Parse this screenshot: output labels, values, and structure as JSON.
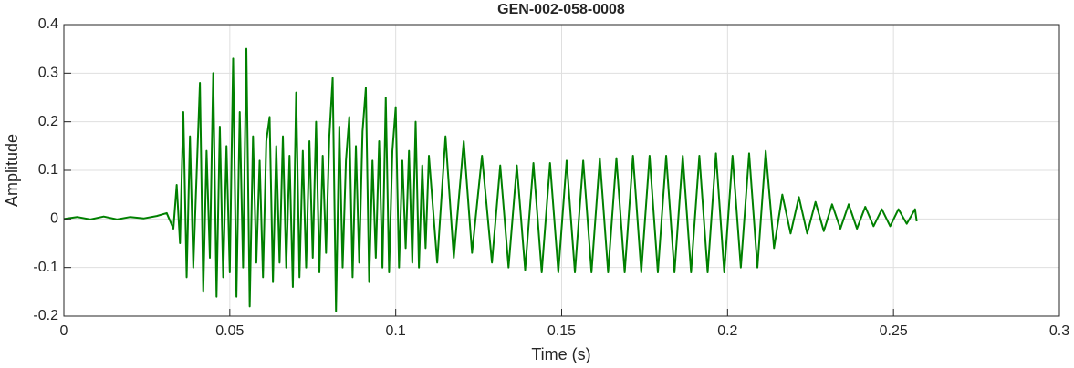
{
  "chart_data": {
    "type": "line",
    "title": "GEN-002-058-0008",
    "xlabel": "Time (s)",
    "ylabel": "Amplitude",
    "color": "#008000",
    "grid": true,
    "xlim": [
      0,
      0.3
    ],
    "ylim": [
      -0.2,
      0.4
    ],
    "xticks": [
      0,
      0.05,
      0.1,
      0.15,
      0.2,
      0.25,
      0.3
    ],
    "yticks": [
      -0.2,
      -0.1,
      0,
      0.1,
      0.2,
      0.3,
      0.4
    ],
    "x": [
      0,
      0.004,
      0.008,
      0.012,
      0.016,
      0.02,
      0.024,
      0.028,
      0.031,
      0.033,
      0.034,
      0.035,
      0.036,
      0.037,
      0.038,
      0.039,
      0.04,
      0.041,
      0.042,
      0.043,
      0.044,
      0.045,
      0.046,
      0.047,
      0.048,
      0.049,
      0.05,
      0.051,
      0.052,
      0.053,
      0.054,
      0.055,
      0.056,
      0.057,
      0.058,
      0.059,
      0.06,
      0.061,
      0.062,
      0.063,
      0.064,
      0.065,
      0.066,
      0.067,
      0.068,
      0.069,
      0.07,
      0.071,
      0.072,
      0.073,
      0.074,
      0.075,
      0.076,
      0.077,
      0.078,
      0.079,
      0.08,
      0.081,
      0.082,
      0.083,
      0.084,
      0.085,
      0.086,
      0.087,
      0.088,
      0.089,
      0.09,
      0.091,
      0.092,
      0.093,
      0.094,
      0.095,
      0.096,
      0.097,
      0.098,
      0.099,
      0.1,
      0.101,
      0.102,
      0.103,
      0.104,
      0.105,
      0.106,
      0.107,
      0.108,
      0.109,
      0.11,
      0.1125,
      0.115,
      0.1175,
      0.1205,
      0.123,
      0.126,
      0.129,
      0.1315,
      0.134,
      0.1365,
      0.139,
      0.1415,
      0.144,
      0.1465,
      0.149,
      0.1515,
      0.154,
      0.1565,
      0.159,
      0.1615,
      0.164,
      0.1665,
      0.169,
      0.1715,
      0.174,
      0.1765,
      0.179,
      0.1815,
      0.184,
      0.1865,
      0.189,
      0.1915,
      0.194,
      0.1965,
      0.199,
      0.2015,
      0.204,
      0.2065,
      0.209,
      0.2115,
      0.214,
      0.2165,
      0.219,
      0.2215,
      0.224,
      0.2265,
      0.229,
      0.2315,
      0.234,
      0.2365,
      0.239,
      0.2415,
      0.244,
      0.2465,
      0.249,
      0.2515,
      0.254,
      0.2565,
      0.257
    ],
    "values": [
      0,
      0.004,
      -0.001,
      0.005,
      -0.001,
      0.004,
      0.001,
      0.006,
      0.012,
      -0.02,
      0.07,
      -0.05,
      0.22,
      -0.12,
      0.17,
      -0.1,
      0.09,
      0.28,
      -0.15,
      0.14,
      -0.08,
      0.3,
      -0.16,
      0.19,
      -0.12,
      0.15,
      -0.11,
      0.33,
      -0.16,
      0.22,
      -0.1,
      0.35,
      -0.18,
      0.17,
      -0.09,
      0.12,
      -0.12,
      0.16,
      0.21,
      -0.13,
      0.15,
      -0.09,
      0.17,
      -0.1,
      0.13,
      -0.14,
      0.26,
      -0.12,
      0.14,
      -0.1,
      0.16,
      -0.08,
      0.2,
      -0.11,
      0.13,
      -0.07,
      0.17,
      0.29,
      -0.19,
      0.19,
      -0.1,
      0.12,
      0.21,
      -0.12,
      0.15,
      -0.09,
      0.18,
      0.27,
      -0.13,
      0.12,
      -0.08,
      0.16,
      -0.1,
      0.25,
      -0.11,
      0.14,
      0.23,
      -0.1,
      0.12,
      -0.06,
      0.14,
      -0.09,
      0.2,
      -0.1,
      0.11,
      -0.06,
      0.13,
      -0.09,
      0.17,
      -0.08,
      0.16,
      -0.07,
      0.13,
      -0.09,
      0.11,
      -0.1,
      0.11,
      -0.105,
      0.115,
      -0.11,
      0.115,
      -0.11,
      0.12,
      -0.11,
      0.12,
      -0.11,
      0.125,
      -0.11,
      0.125,
      -0.11,
      0.13,
      -0.11,
      0.13,
      -0.11,
      0.13,
      -0.11,
      0.13,
      -0.11,
      0.13,
      -0.11,
      0.135,
      -0.11,
      0.13,
      -0.1,
      0.135,
      -0.1,
      0.14,
      -0.06,
      0.05,
      -0.03,
      0.045,
      -0.03,
      0.035,
      -0.025,
      0.03,
      -0.02,
      0.03,
      -0.02,
      0.025,
      -0.015,
      0.02,
      -0.015,
      0.02,
      -0.01,
      0.02,
      -0.005
    ]
  }
}
